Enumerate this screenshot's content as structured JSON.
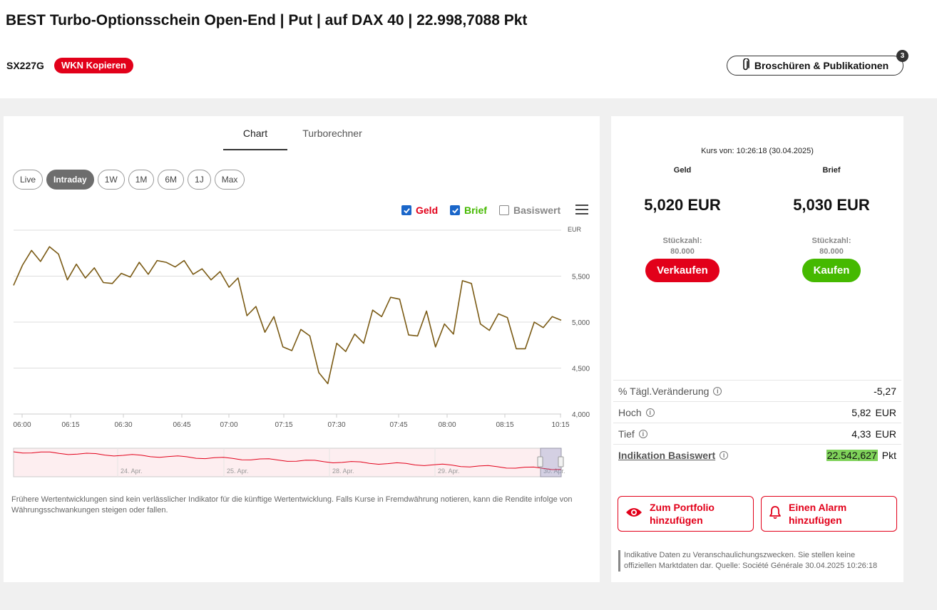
{
  "header": {
    "title": "BEST Turbo-Optionsschein Open-End | Put | auf DAX 40 | 22.998,7088 Pkt",
    "wkn": "SX227G",
    "wkn_copy_label": "WKN Kopieren",
    "brochures_label": "Broschüren & Publikationen",
    "brochures_count": "3"
  },
  "tabs": [
    {
      "label": "Chart",
      "active": true
    },
    {
      "label": "Turborechner",
      "active": false
    }
  ],
  "ranges": [
    {
      "label": "Live",
      "active": false
    },
    {
      "label": "Intraday",
      "active": true
    },
    {
      "label": "1W",
      "active": false
    },
    {
      "label": "1M",
      "active": false
    },
    {
      "label": "6M",
      "active": false
    },
    {
      "label": "1J",
      "active": false
    },
    {
      "label": "Max",
      "active": false
    }
  ],
  "legend": {
    "geld": {
      "label": "Geld",
      "checked": true,
      "color": "#e2001a"
    },
    "brief": {
      "label": "Brief",
      "checked": true,
      "color": "#45b900"
    },
    "basiswert": {
      "label": "Basiswert",
      "checked": false,
      "color": "#888888"
    }
  },
  "chart_data": {
    "type": "line",
    "unit_label": "EUR",
    "ylim": [
      4.0,
      6.0
    ],
    "yticks": [
      "4,000",
      "4,500",
      "5,000",
      "5,500"
    ],
    "xticks": [
      "06:00",
      "06:15",
      "06:30",
      "06:45",
      "07:00",
      "07:15",
      "07:30",
      "07:45",
      "08:00",
      "08:15",
      "10:15"
    ],
    "line_color": "#7a5a14",
    "series": [
      {
        "name": "Geld",
        "values": [
          5.4,
          5.62,
          5.78,
          5.66,
          5.82,
          5.74,
          5.46,
          5.63,
          5.48,
          5.59,
          5.43,
          5.42,
          5.53,
          5.49,
          5.65,
          5.52,
          5.67,
          5.65,
          5.6,
          5.67,
          5.52,
          5.58,
          5.46,
          5.55,
          5.38,
          5.48,
          5.07,
          5.17,
          4.89,
          5.06,
          4.73,
          4.69,
          4.92,
          4.85,
          4.45,
          4.33,
          4.77,
          4.68,
          4.87,
          4.77,
          5.13,
          5.06,
          5.27,
          5.25,
          4.86,
          4.85,
          5.12,
          4.73,
          4.98,
          4.87,
          5.45,
          5.42,
          4.98,
          4.91,
          5.09,
          5.05,
          4.71,
          4.71,
          5.0,
          4.94,
          5.06,
          5.02
        ]
      }
    ],
    "navigator_labels": [
      "24. Apr.",
      "25. Apr.",
      "28. Apr.",
      "29. Apr.",
      "30. Apr."
    ]
  },
  "disclaimer": "Frühere Wertentwicklungen sind kein verlässlicher Indikator für die künftige Wertentwicklung. Falls Kurse in Fremdwährung notieren, kann die Rendite infolge von Währungsschwankungen steigen oder fallen.",
  "quote": {
    "kurs_von": "Kurs von: 10:26:18 (30.04.2025)",
    "geld": {
      "label": "Geld",
      "price": "5,020 EUR",
      "stueck_label": "Stückzahl:",
      "stueck": "80.000",
      "button": "Verkaufen"
    },
    "brief": {
      "label": "Brief",
      "price": "5,030 EUR",
      "stueck_label": "Stückzahl:",
      "stueck": "80.000",
      "button": "Kaufen"
    }
  },
  "stats": [
    {
      "label": "% Tägl.Veränderung",
      "value": "-5,27",
      "unit": ""
    },
    {
      "label": "Hoch",
      "value": "5,82",
      "unit": "EUR"
    },
    {
      "label": "Tief",
      "value": "4,33",
      "unit": "EUR"
    },
    {
      "label": "Indikation Basiswert",
      "value": "22.542,627",
      "unit": "Pkt"
    }
  ],
  "actions": {
    "portfolio_line1": "Zum Portfolio",
    "portfolio_line2": "hinzufügen",
    "alarm_line1": "Einen Alarm",
    "alarm_line2": "hinzufügen"
  },
  "footnote": "Indikative Daten zu Veranschaulichungszwecken. Sie stellen keine offiziellen Marktdaten dar. Quelle: Société Générale 30.04.2025 10:26:18"
}
